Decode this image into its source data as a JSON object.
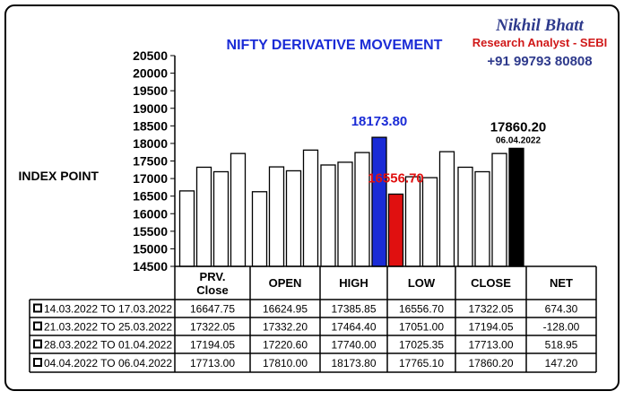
{
  "branding": {
    "name": "Nikhil Bhatt",
    "role": "Research Analyst - SEBI",
    "phone": "+91 99793 80808",
    "name_color": "#2e3a8c",
    "role_color": "#d01818",
    "phone_color": "#2e3a8c"
  },
  "chart_data": {
    "type": "bar",
    "title": "NIFTY DERIVATIVE MOVEMENT",
    "ylabel": "INDEX POINT",
    "ylim": [
      14500,
      20500
    ],
    "yticks": [
      14500,
      15000,
      15500,
      16000,
      16500,
      17000,
      17500,
      18000,
      18500,
      19000,
      19500,
      20000,
      20500
    ],
    "grid": false,
    "categories": [
      "PRV. Close",
      "OPEN",
      "HIGH",
      "LOW",
      "CLOSE"
    ],
    "category_lines": [
      [
        "PRV.",
        "Close"
      ],
      [
        "OPEN"
      ],
      [
        "HIGH"
      ],
      [
        "LOW"
      ],
      [
        "CLOSE"
      ]
    ],
    "series": [
      {
        "name": "14.03.2022 TO 17.03.2022",
        "values": [
          16647.75,
          16624.95,
          17385.85,
          16556.7,
          17322.05
        ]
      },
      {
        "name": "21.03.2022 TO 25.03.2022",
        "values": [
          17322.05,
          17332.2,
          17464.4,
          17051.0,
          17194.05
        ]
      },
      {
        "name": "28.03.2022 TO 01.04.2022",
        "values": [
          17194.05,
          17220.6,
          17740.0,
          17025.35,
          17713.0
        ]
      },
      {
        "name": "04.04.2022 TO 06.04.2022",
        "values": [
          17713.0,
          17810.0,
          18173.8,
          17765.1,
          17860.2
        ]
      }
    ],
    "highlights": [
      {
        "category": 2,
        "series": 3,
        "color": "#1a2bd6",
        "label": "18173.80",
        "label_color": "#1a2bd6"
      },
      {
        "category": 3,
        "series": 0,
        "color": "#e01010",
        "label": "16556.70",
        "label_color": "#e01010"
      },
      {
        "category": 4,
        "series": 3,
        "color": "#000000",
        "label": "17860.20",
        "label_color": "#000000",
        "sublabel": "06.04.2022"
      }
    ],
    "table": {
      "net_header": "NET",
      "rows": [
        {
          "period": "14.03.2022 TO 17.03.2022",
          "values": [
            "16647.75",
            "16624.95",
            "17385.85",
            "16556.70",
            "17322.05"
          ],
          "net": "674.30"
        },
        {
          "period": "21.03.2022 TO 25.03.2022",
          "values": [
            "17322.05",
            "17332.20",
            "17464.40",
            "17051.00",
            "17194.05"
          ],
          "net": "-128.00"
        },
        {
          "period": "28.03.2022 TO 01.04.2022",
          "values": [
            "17194.05",
            "17220.60",
            "17740.00",
            "17025.35",
            "17713.00"
          ],
          "net": "518.95"
        },
        {
          "period": "04.04.2022 TO 06.04.2022",
          "values": [
            "17713.00",
            "17810.00",
            "18173.80",
            "17765.10",
            "17860.20"
          ],
          "net": "147.20"
        }
      ]
    },
    "colors": {
      "bar_default": "#ffffff",
      "title": "#1a2bd6"
    }
  }
}
